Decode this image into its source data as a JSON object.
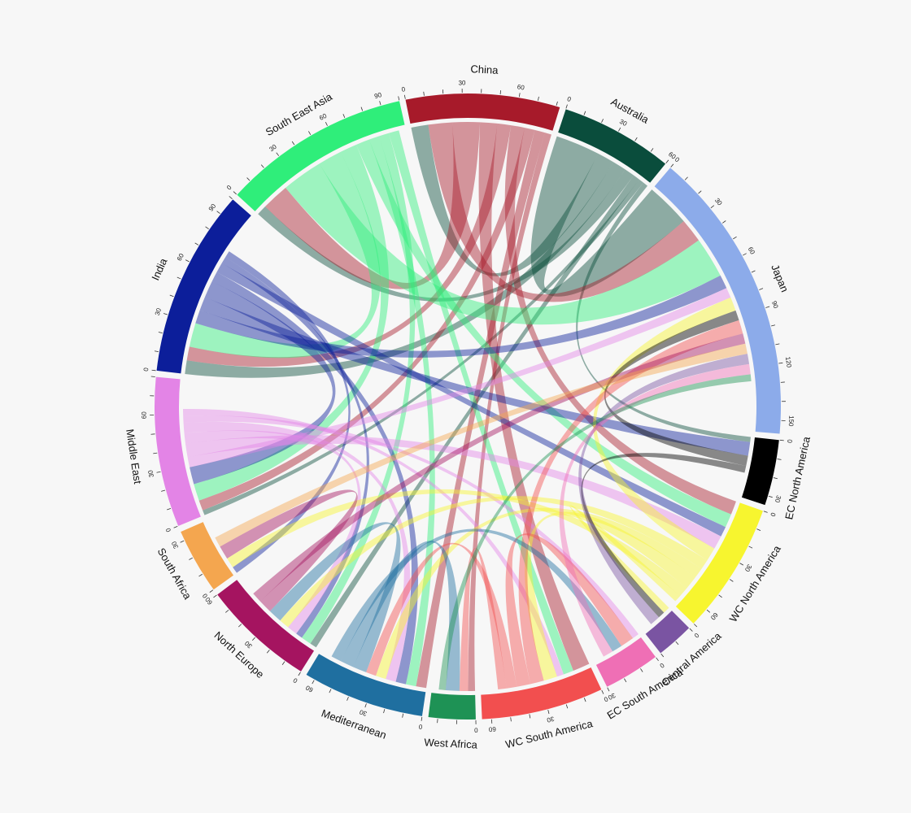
{
  "chart_data": {
    "type": "chord",
    "tick_step": 10,
    "tick_label_step": 30,
    "groups": [
      {
        "name": "China",
        "total": 82,
        "color": "#a71a2a"
      },
      {
        "name": "Australia",
        "total": 60,
        "color": "#0a4d3c"
      },
      {
        "name": "Japan",
        "total": 157,
        "color": "#8cabea"
      },
      {
        "name": "EC North America",
        "total": 35,
        "color": "#000000"
      },
      {
        "name": "WC North America",
        "total": 70,
        "color": "#f7f52f"
      },
      {
        "name": "Central America",
        "total": 20,
        "color": "#7a54a2"
      },
      {
        "name": "EC South America",
        "total": 30,
        "color": "#ef6fb5"
      },
      {
        "name": "WC South America",
        "total": 65,
        "color": "#f24f4f"
      },
      {
        "name": "West Africa",
        "total": 25,
        "color": "#1e9255"
      },
      {
        "name": "Mediterranean",
        "total": 65,
        "color": "#1f6fa0"
      },
      {
        "name": "North Europe",
        "total": 60,
        "color": "#a51460"
      },
      {
        "name": "South Africa",
        "total": 35,
        "color": "#f4a64f"
      },
      {
        "name": "Middle East",
        "total": 80,
        "color": "#e384e6"
      },
      {
        "name": "India",
        "total": 100,
        "color": "#0c1e9a"
      },
      {
        "name": "South East Asia",
        "total": 100,
        "color": "#2fee7a"
      }
    ],
    "flows": [
      {
        "source": "Australia",
        "target": "Japan",
        "value": 26
      },
      {
        "source": "Australia",
        "target": "China",
        "value": 10
      },
      {
        "source": "Australia",
        "target": "India",
        "value": 8
      },
      {
        "source": "Australia",
        "target": "South East Asia",
        "value": 6
      },
      {
        "source": "Australia",
        "target": "North Europe",
        "value": 4
      },
      {
        "source": "Australia",
        "target": "Middle East",
        "value": 3
      },
      {
        "source": "Australia",
        "target": "EC North America",
        "value": 3
      },
      {
        "source": "China",
        "target": "Japan",
        "value": 14
      },
      {
        "source": "China",
        "target": "South East Asia",
        "value": 16
      },
      {
        "source": "China",
        "target": "WC South America",
        "value": 10
      },
      {
        "source": "China",
        "target": "India",
        "value": 8
      },
      {
        "source": "China",
        "target": "WC North America",
        "value": 8
      },
      {
        "source": "China",
        "target": "Middle East",
        "value": 6
      },
      {
        "source": "China",
        "target": "Mediterranean",
        "value": 6
      },
      {
        "source": "China",
        "target": "West Africa",
        "value": 4
      },
      {
        "source": "South East Asia",
        "target": "Japan",
        "value": 24
      },
      {
        "source": "South East Asia",
        "target": "India",
        "value": 14
      },
      {
        "source": "South East Asia",
        "target": "Middle East",
        "value": 10
      },
      {
        "source": "South East Asia",
        "target": "WC North America",
        "value": 8
      },
      {
        "source": "South East Asia",
        "target": "Mediterranean",
        "value": 6
      },
      {
        "source": "South East Asia",
        "target": "North Europe",
        "value": 6
      },
      {
        "source": "South East Asia",
        "target": "WC South America",
        "value": 6
      },
      {
        "source": "India",
        "target": "Japan",
        "value": 8
      },
      {
        "source": "India",
        "target": "EC North America",
        "value": 8
      },
      {
        "source": "India",
        "target": "Middle East",
        "value": 10
      },
      {
        "source": "India",
        "target": "Mediterranean",
        "value": 6
      },
      {
        "source": "India",
        "target": "WC North America",
        "value": 6
      },
      {
        "source": "India",
        "target": "North Europe",
        "value": 4
      },
      {
        "source": "India",
        "target": "South Africa",
        "value": 4
      },
      {
        "source": "Middle East",
        "target": "Japan",
        "value": 6
      },
      {
        "source": "Middle East",
        "target": "WC North America",
        "value": 8
      },
      {
        "source": "Middle East",
        "target": "North Europe",
        "value": 6
      },
      {
        "source": "Middle East",
        "target": "Mediterranean",
        "value": 6
      },
      {
        "source": "Middle East",
        "target": "EC South America",
        "value": 4
      },
      {
        "source": "Middle East",
        "target": "WC South America",
        "value": 4
      },
      {
        "source": "WC North America",
        "target": "Japan",
        "value": 8
      },
      {
        "source": "WC North America",
        "target": "North Europe",
        "value": 6
      },
      {
        "source": "WC North America",
        "target": "Mediterranean",
        "value": 6
      },
      {
        "source": "WC North America",
        "target": "WC South America",
        "value": 8
      },
      {
        "source": "WC North America",
        "target": "South Africa",
        "value": 6
      },
      {
        "source": "WC North America",
        "target": "Central America",
        "value": 4
      },
      {
        "source": "EC North America",
        "target": "Japan",
        "value": 6
      },
      {
        "source": "EC North America",
        "target": "Central America",
        "value": 4
      },
      {
        "source": "WC South America",
        "target": "Japan",
        "value": 8
      },
      {
        "source": "WC South America",
        "target": "EC South America",
        "value": 8
      },
      {
        "source": "WC South America",
        "target": "Mediterranean",
        "value": 6
      },
      {
        "source": "WC South America",
        "target": "West Africa",
        "value": 5
      },
      {
        "source": "Mediterranean",
        "target": "North Europe",
        "value": 8
      },
      {
        "source": "Mediterranean",
        "target": "West Africa",
        "value": 8
      },
      {
        "source": "Mediterranean",
        "target": "EC South America",
        "value": 6
      },
      {
        "source": "North Europe",
        "target": "South Africa",
        "value": 8
      },
      {
        "source": "North Europe",
        "target": "Japan",
        "value": 6
      },
      {
        "source": "South Africa",
        "target": "Japan",
        "value": 6
      },
      {
        "source": "Central America",
        "target": "Japan",
        "value": 6
      },
      {
        "source": "EC South America",
        "target": "Japan",
        "value": 6
      },
      {
        "source": "West Africa",
        "target": "Japan",
        "value": 4
      }
    ]
  }
}
